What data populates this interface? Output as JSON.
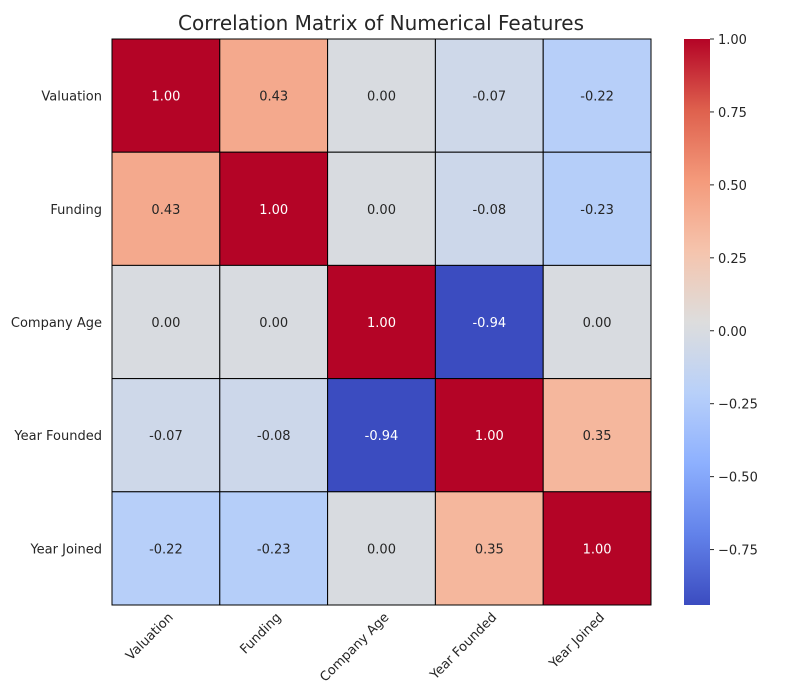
{
  "chart_data": {
    "type": "heatmap",
    "title": "Correlation Matrix of Numerical Features",
    "row_labels": [
      "Valuation",
      "Funding",
      "Company Age",
      "Year Founded",
      "Year Joined"
    ],
    "col_labels": [
      "Valuation",
      "Funding",
      "Company Age",
      "Year Founded",
      "Year Joined"
    ],
    "values": [
      [
        1.0,
        0.43,
        -0.0,
        -0.07,
        -0.22
      ],
      [
        0.43,
        1.0,
        -0.0,
        -0.08,
        -0.23
      ],
      [
        -0.0,
        -0.0,
        1.0,
        -0.94,
        -0.0
      ],
      [
        -0.07,
        -0.08,
        -0.94,
        1.0,
        0.35
      ],
      [
        -0.22,
        -0.23,
        -0.0,
        0.35,
        1.0
      ]
    ],
    "colormap": "coolwarm",
    "vmin": -0.94,
    "vmax": 1.0,
    "colorbar_ticks": [
      "1.00",
      "0.75",
      "0.50",
      "0.25",
      "0.00",
      "−0.25",
      "−0.50",
      "−0.75"
    ],
    "colorbar_tick_values": [
      1.0,
      0.75,
      0.5,
      0.25,
      0.0,
      -0.25,
      -0.5,
      -0.75
    ],
    "annotations": true,
    "legend_position": "right"
  }
}
